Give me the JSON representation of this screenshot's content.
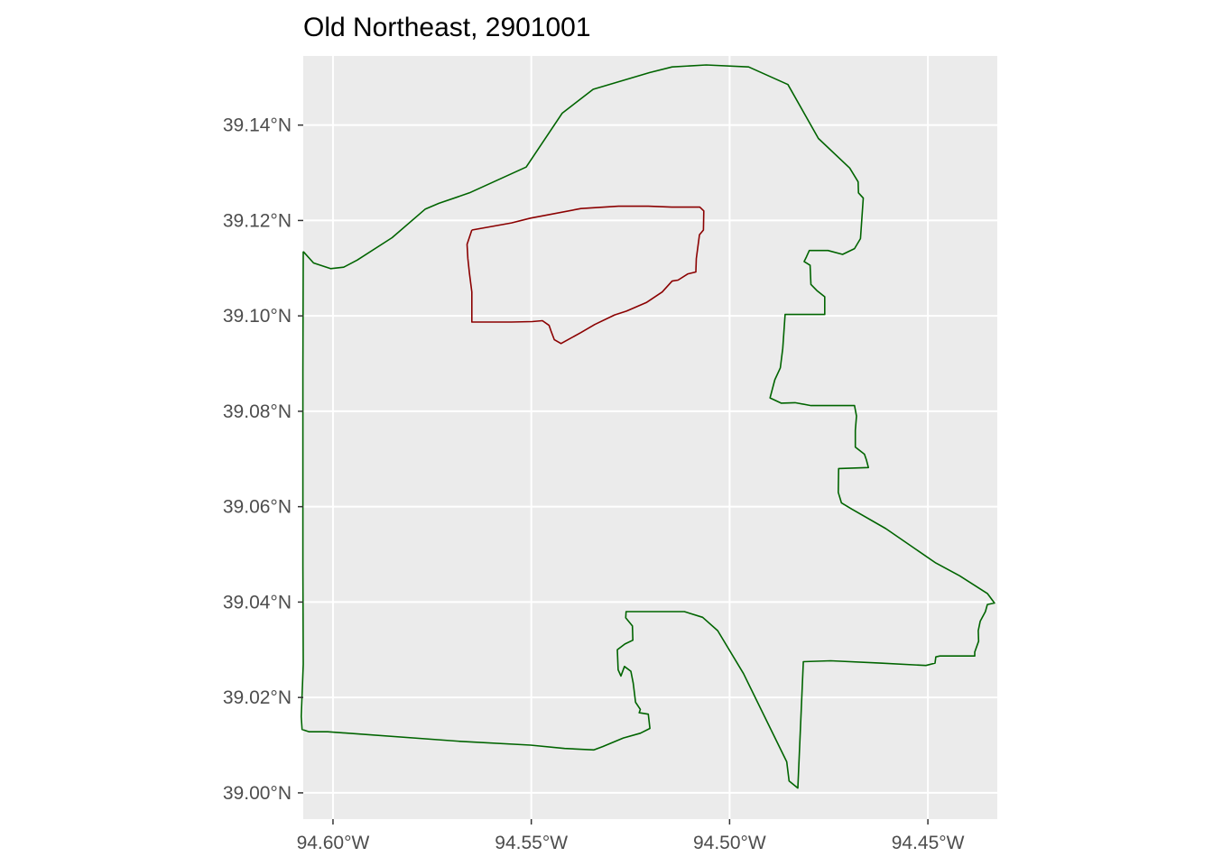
{
  "title": "Old Northeast, 2901001",
  "panel_background": "#ebebeb",
  "grid_color": "#ffffff",
  "tick_color": "#333333",
  "chart_data": {
    "type": "map",
    "title": "Old Northeast, 2901001",
    "xlim": [
      -94.6075,
      -94.4325
    ],
    "ylim": [
      38.9945,
      39.1545
    ],
    "x_ticks": [
      {
        "value": -94.6,
        "label": "94.60°W"
      },
      {
        "value": -94.55,
        "label": "94.55°W"
      },
      {
        "value": -94.5,
        "label": "94.50°W"
      },
      {
        "value": -94.45,
        "label": "94.45°W"
      }
    ],
    "y_ticks": [
      {
        "value": 39.0,
        "label": "39.00°N"
      },
      {
        "value": 39.02,
        "label": "39.02°N"
      },
      {
        "value": 39.04,
        "label": "39.04°N"
      },
      {
        "value": 39.06,
        "label": "39.06°N"
      },
      {
        "value": 39.08,
        "label": "39.08°N"
      },
      {
        "value": 39.1,
        "label": "39.10°N"
      },
      {
        "value": 39.12,
        "label": "39.12°N"
      },
      {
        "value": 39.14,
        "label": "39.14°N"
      }
    ],
    "grid": true,
    "layers": [
      {
        "id": "outer-boundary",
        "color": "#006400",
        "coords": [
          [
            -94.6075,
            39.1135
          ],
          [
            -94.6049,
            39.1111
          ],
          [
            -94.6006,
            39.1099
          ],
          [
            -94.5973,
            39.1102
          ],
          [
            -94.5939,
            39.1117
          ],
          [
            -94.5851,
            39.1164
          ],
          [
            -94.5767,
            39.1224
          ],
          [
            -94.5733,
            39.1236
          ],
          [
            -94.5656,
            39.1258
          ],
          [
            -94.5513,
            39.1312
          ],
          [
            -94.5422,
            39.1425
          ],
          [
            -94.5344,
            39.1475
          ],
          [
            -94.5202,
            39.151
          ],
          [
            -94.5145,
            39.1522
          ],
          [
            -94.5059,
            39.1526
          ],
          [
            -94.4952,
            39.1522
          ],
          [
            -94.4853,
            39.1485
          ],
          [
            -94.4776,
            39.1372
          ],
          [
            -94.4697,
            39.131
          ],
          [
            -94.4676,
            39.1281
          ],
          [
            -94.4675,
            39.1258
          ],
          [
            -94.4663,
            39.1247
          ],
          [
            -94.467,
            39.1162
          ],
          [
            -94.4685,
            39.1141
          ],
          [
            -94.4715,
            39.1129
          ],
          [
            -94.4752,
            39.1137
          ],
          [
            -94.4799,
            39.1137
          ],
          [
            -94.4806,
            39.1124
          ],
          [
            -94.4812,
            39.1114
          ],
          [
            -94.4797,
            39.1106
          ],
          [
            -94.4795,
            39.1066
          ],
          [
            -94.478,
            39.1053
          ],
          [
            -94.476,
            39.104
          ],
          [
            -94.476,
            39.1003
          ],
          [
            -94.486,
            39.1003
          ],
          [
            -94.4866,
            39.0932
          ],
          [
            -94.4872,
            39.0891
          ],
          [
            -94.4886,
            39.0866
          ],
          [
            -94.4898,
            39.0828
          ],
          [
            -94.487,
            39.0817
          ],
          [
            -94.4835,
            39.0818
          ],
          [
            -94.4795,
            39.0812
          ],
          [
            -94.4685,
            39.0812
          ],
          [
            -94.468,
            39.079
          ],
          [
            -94.4683,
            39.076
          ],
          [
            -94.4683,
            39.0725
          ],
          [
            -94.466,
            39.071
          ],
          [
            -94.4655,
            39.0698
          ],
          [
            -94.465,
            39.0682
          ],
          [
            -94.4725,
            39.068
          ],
          [
            -94.4726,
            39.063
          ],
          [
            -94.4718,
            39.0608
          ],
          [
            -94.4692,
            39.0595
          ],
          [
            -94.4606,
            39.0554
          ],
          [
            -94.448,
            39.0482
          ],
          [
            -94.442,
            39.0455
          ],
          [
            -94.435,
            39.0418
          ],
          [
            -94.4332,
            39.0398
          ],
          [
            -94.435,
            39.0395
          ],
          [
            -94.4355,
            39.038
          ],
          [
            -94.4368,
            39.036
          ],
          [
            -94.4373,
            39.034
          ],
          [
            -94.4372,
            39.0318
          ],
          [
            -94.4382,
            39.0295
          ],
          [
            -94.4382,
            39.0287
          ],
          [
            -94.447,
            39.0287
          ],
          [
            -94.448,
            39.0285
          ],
          [
            -94.4482,
            39.0272
          ],
          [
            -94.4505,
            39.0267
          ],
          [
            -94.462,
            39.0272
          ],
          [
            -94.4745,
            39.0277
          ],
          [
            -94.4814,
            39.0275
          ],
          [
            -94.4828,
            39.001
          ],
          [
            -94.485,
            39.0025
          ],
          [
            -94.4856,
            39.0065
          ],
          [
            -94.4965,
            39.025
          ],
          [
            -94.503,
            39.034
          ],
          [
            -94.5068,
            39.0368
          ],
          [
            -94.5114,
            39.038
          ],
          [
            -94.5206,
            39.038
          ],
          [
            -94.5261,
            39.038
          ],
          [
            -94.5262,
            39.0367
          ],
          [
            -94.5245,
            39.035
          ],
          [
            -94.5244,
            39.032
          ],
          [
            -94.5264,
            39.0312
          ],
          [
            -94.5283,
            39.03
          ],
          [
            -94.5281,
            39.0258
          ],
          [
            -94.5274,
            39.0245
          ],
          [
            -94.5265,
            39.0265
          ],
          [
            -94.5249,
            39.0255
          ],
          [
            -94.5243,
            39.023
          ],
          [
            -94.5237,
            39.019
          ],
          [
            -94.5225,
            39.0175
          ],
          [
            -94.5228,
            39.0168
          ],
          [
            -94.5205,
            39.0165
          ],
          [
            -94.5201,
            39.0135
          ],
          [
            -94.5225,
            39.0125
          ],
          [
            -94.5268,
            39.0115
          ],
          [
            -94.532,
            39.0097
          ],
          [
            -94.5342,
            39.009
          ],
          [
            -94.5416,
            39.0093
          ],
          [
            -94.5502,
            39.01
          ],
          [
            -94.568,
            39.0108
          ],
          [
            -94.6013,
            39.0128
          ],
          [
            -94.606,
            39.0128
          ],
          [
            -94.6078,
            39.0133
          ],
          [
            -94.608,
            39.016
          ],
          [
            -94.6075,
            39.027
          ],
          [
            -94.6076,
            39.0475
          ],
          [
            -94.6076,
            39.088
          ],
          [
            -94.6075,
            39.1135
          ]
        ]
      },
      {
        "id": "inner-boundary",
        "color": "#8b0000",
        "coords": [
          [
            -94.565,
            39.118
          ],
          [
            -94.555,
            39.1195
          ],
          [
            -94.5502,
            39.1205
          ],
          [
            -94.5375,
            39.1225
          ],
          [
            -94.528,
            39.123
          ],
          [
            -94.5205,
            39.123
          ],
          [
            -94.5146,
            39.1228
          ],
          [
            -94.5075,
            39.1228
          ],
          [
            -94.5065,
            39.122
          ],
          [
            -94.5066,
            39.118
          ],
          [
            -94.5076,
            39.117
          ],
          [
            -94.5084,
            39.112
          ],
          [
            -94.5085,
            39.1092
          ],
          [
            -94.5105,
            39.1088
          ],
          [
            -94.513,
            39.1075
          ],
          [
            -94.5145,
            39.1073
          ],
          [
            -94.517,
            39.105
          ],
          [
            -94.521,
            39.1028
          ],
          [
            -94.526,
            39.101
          ],
          [
            -94.529,
            39.1002
          ],
          [
            -94.534,
            39.0982
          ],
          [
            -94.5375,
            39.0965
          ],
          [
            -94.5425,
            39.0942
          ],
          [
            -94.5442,
            39.095
          ],
          [
            -94.545,
            39.0968
          ],
          [
            -94.5455,
            39.098
          ],
          [
            -94.5472,
            39.099
          ],
          [
            -94.5498,
            39.0988
          ],
          [
            -94.555,
            39.0987
          ],
          [
            -94.5615,
            39.0987
          ],
          [
            -94.565,
            39.0987
          ],
          [
            -94.565,
            39.105
          ],
          [
            -94.5656,
            39.109
          ],
          [
            -94.566,
            39.112
          ],
          [
            -94.5662,
            39.115
          ],
          [
            -94.565,
            39.118
          ]
        ]
      }
    ]
  }
}
